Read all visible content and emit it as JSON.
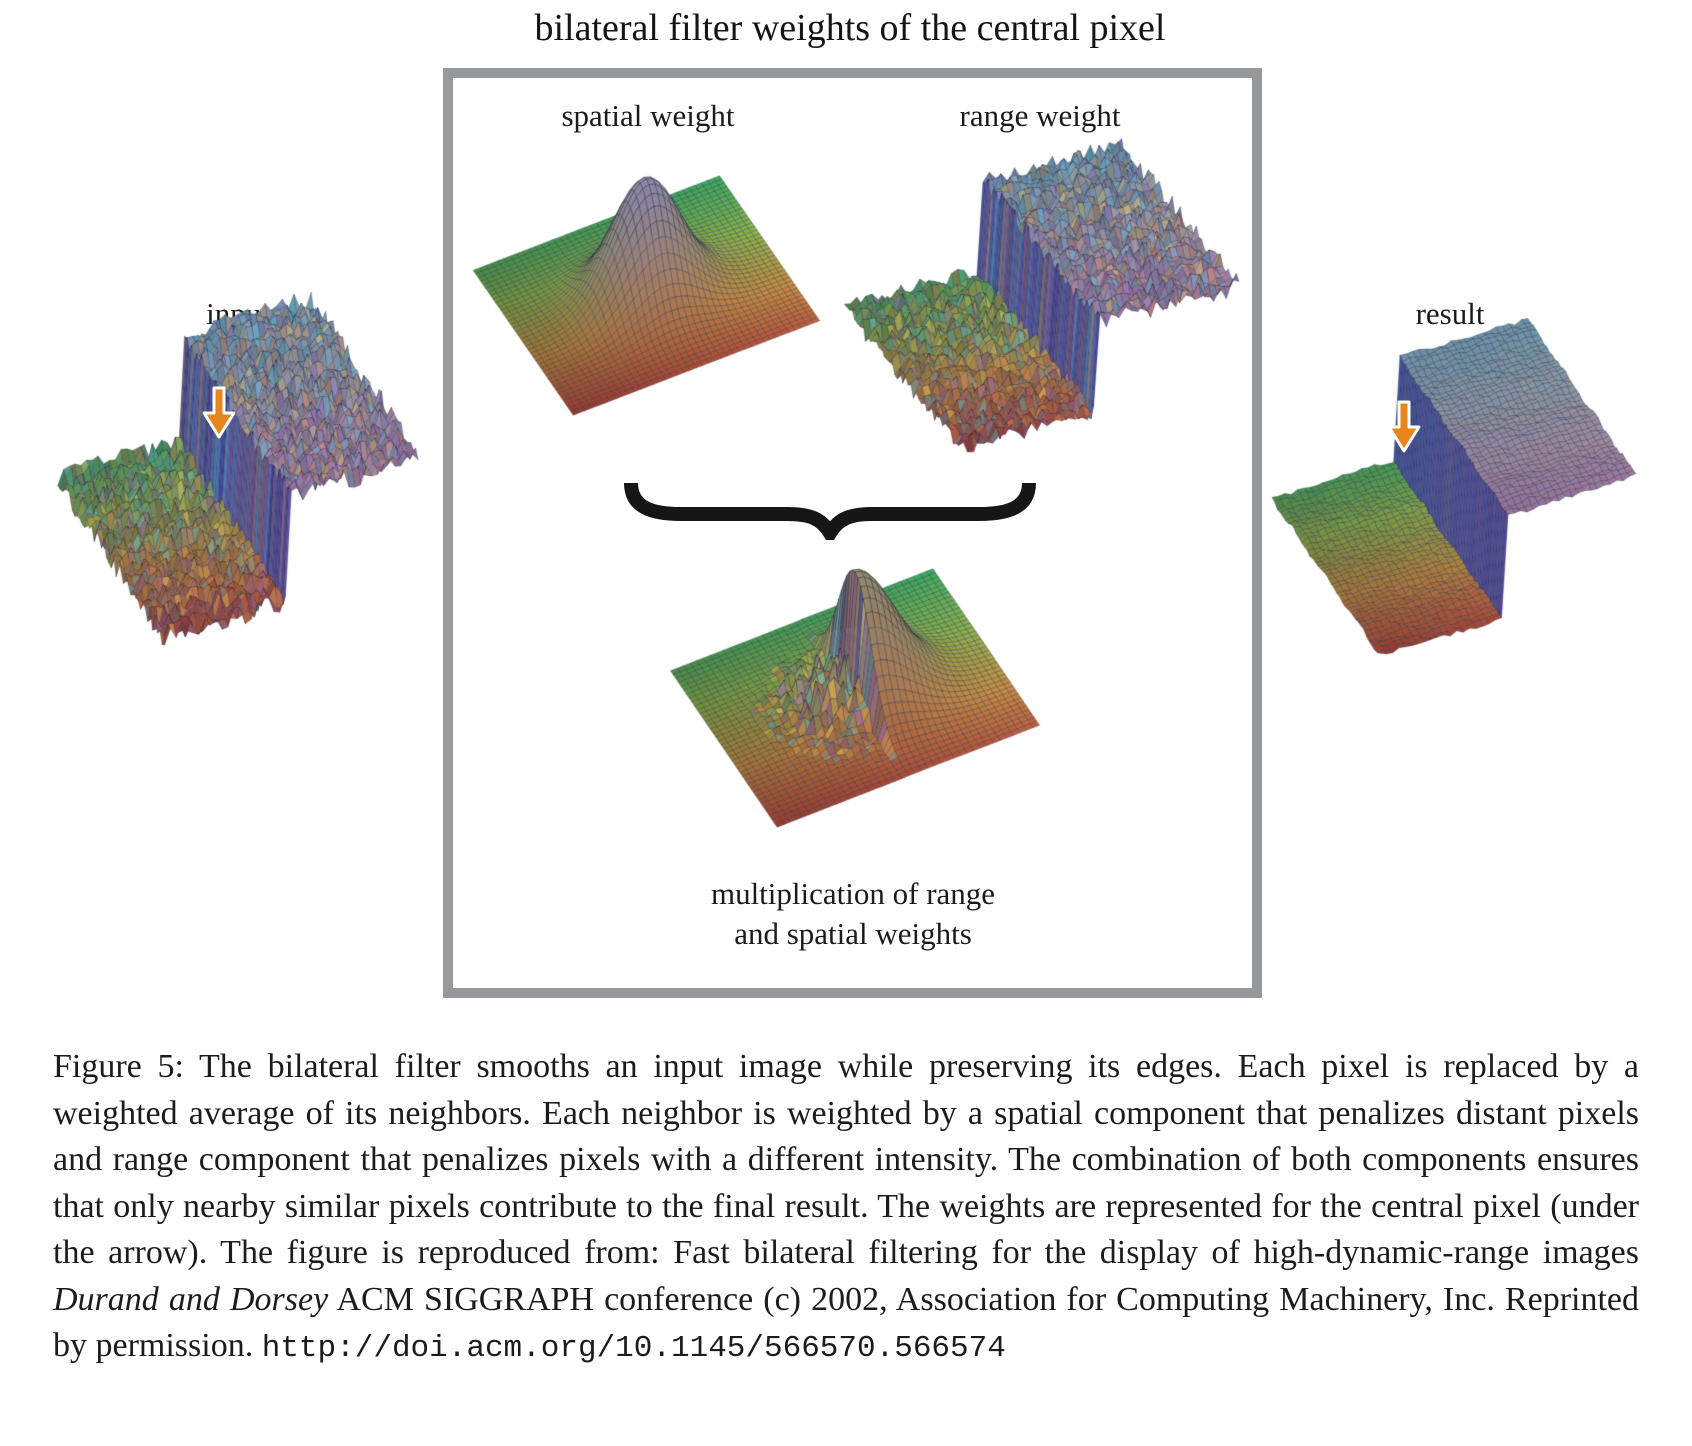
{
  "title": "bilateral filter weights of the central pixel",
  "box": {
    "border_color": "#97989a"
  },
  "labels": {
    "input": "input",
    "result": "result",
    "spatial": "spatial weight",
    "range": "range weight",
    "multiplication_line1": "multiplication of range",
    "multiplication_line2": "and spatial weights"
  },
  "figure": {
    "arrow_color": "#e8861e",
    "brace_color": "#161616",
    "plots": [
      {
        "id": "input",
        "label": "input",
        "kind": "noisy_step",
        "seed": 13,
        "noise": 0.11,
        "jitter": 0.45,
        "has_arrow": true
      },
      {
        "id": "spatial",
        "label": "spatial weight",
        "kind": "gaussian",
        "seed": 1,
        "noise": 0,
        "jitter": 0,
        "has_arrow": false
      },
      {
        "id": "range",
        "label": "range weight",
        "kind": "noisy_step",
        "seed": 29,
        "noise": 0.11,
        "jitter": 0.45,
        "has_arrow": false
      },
      {
        "id": "mult",
        "label": "multiplication of range and spatial weights",
        "kind": "masked_gaussian",
        "seed": 77,
        "noise": 0.45,
        "jitter": 0.5,
        "has_arrow": false
      },
      {
        "id": "result",
        "label": "result",
        "kind": "smooth_step",
        "seed": 3,
        "noise": 0.02,
        "jitter": 0.07,
        "has_arrow": true
      }
    ],
    "surface_colors": {
      "plane_green": "#38aa60",
      "plane_olive": "#8cb44c",
      "plane_ochre": "#c88c42",
      "plane_red": "#ba4639",
      "height_tint": "#8488d6",
      "cliff_tint": "#3a42a0"
    }
  },
  "caption": {
    "part1": "Figure 5: The bilateral filter smooths an input image while preserving its edges. Each pixel is replaced by a weighted average of its neighbors. Each neighbor is weighted by a spatial component that penalizes distant pixels and range component that penalizes pixels with a different intensity. The combination of both components ensures that only nearby similar pixels contribute to the final result. The weights are represented for the central pixel (under the arrow). The figure is reproduced from: Fast bilateral filtering for the display of high-dynamic-range images ",
    "italic": "Durand and Dorsey",
    "part2": " ACM SIGGRAPH conference (c) 2002, Association for Computing Machinery, Inc. Reprinted by permission. ",
    "doi": "http://doi.acm.org/10.1145/566570.566574"
  }
}
